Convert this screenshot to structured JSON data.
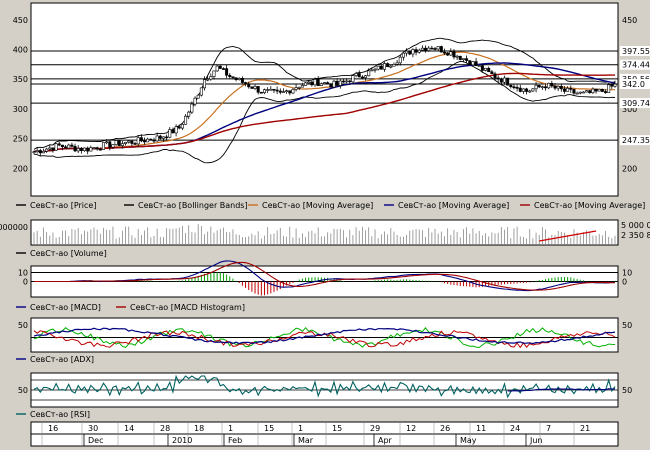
{
  "chart_data": [
    {
      "type": "candlestick",
      "panel": "price",
      "ylim": [
        160,
        470
      ],
      "yticks": [
        200,
        250,
        300,
        350,
        400,
        450
      ],
      "hlines": [
        {
          "value": 397.55,
          "label": "397.55"
        },
        {
          "value": 374.44,
          "label": "374.44"
        },
        {
          "value": 350.56,
          "label": "350.56"
        },
        {
          "value": 342.0,
          "label": "342.0"
        },
        {
          "value": 309.74,
          "label": "309.74"
        },
        {
          "value": 247.35,
          "label": "247.35"
        }
      ],
      "legend": [
        {
          "label": "СевСт-ао [Price]",
          "color": "#000000"
        },
        {
          "label": "СевСт-ао [Bollinger Bands]",
          "color": "#000000"
        },
        {
          "label": "СевСт-ао [Moving Average]",
          "color": "#c87020"
        },
        {
          "label": "СевСт-ао [Moving Average]",
          "color": "#000080"
        },
        {
          "label": "СевСт-ао [Moving Average]",
          "color": "#a00000"
        }
      ],
      "price_anchors": [
        [
          0,
          228
        ],
        [
          8,
          238
        ],
        [
          16,
          232
        ],
        [
          24,
          240
        ],
        [
          32,
          245
        ],
        [
          40,
          252
        ],
        [
          46,
          268
        ],
        [
          50,
          305
        ],
        [
          54,
          350
        ],
        [
          58,
          370
        ],
        [
          62,
          355
        ],
        [
          66,
          345
        ],
        [
          72,
          330
        ],
        [
          78,
          325
        ],
        [
          84,
          340
        ],
        [
          90,
          345
        ],
        [
          96,
          340
        ],
        [
          102,
          355
        ],
        [
          108,
          365
        ],
        [
          114,
          380
        ],
        [
          120,
          400
        ],
        [
          126,
          405
        ],
        [
          132,
          395
        ],
        [
          138,
          380
        ],
        [
          144,
          360
        ],
        [
          150,
          345
        ],
        [
          156,
          330
        ],
        [
          162,
          340
        ],
        [
          168,
          330
        ],
        [
          174,
          325
        ],
        [
          180,
          330
        ],
        [
          184,
          340
        ]
      ],
      "series_colors": {
        "ma_fast": "#c87020",
        "ma_mid": "#000080",
        "ma_slow": "#a00000",
        "bands": "#000000"
      }
    },
    {
      "type": "bar",
      "panel": "volume",
      "ytick_left": "000000",
      "ytick_right_top": "5 000 0",
      "ytick_right_bottom": "2 350 8",
      "legend": [
        {
          "label": "СевСт-ао [Volume]",
          "color": "#000000"
        }
      ]
    },
    {
      "type": "line",
      "panel": "macd",
      "ylim": [
        -15,
        15
      ],
      "yticks": [
        10,
        0
      ],
      "legend": [
        {
          "label": "СевСт-ао [MACD]",
          "color": "#000080"
        },
        {
          "label": "СевСт-ао [MACD Histogram]",
          "color": "#a00000"
        }
      ]
    },
    {
      "type": "line",
      "panel": "adx",
      "ylim": [
        0,
        60
      ],
      "yticks": [
        50
      ],
      "legend": [
        {
          "label": "СевСт-ао [ADX]",
          "color": "#000080"
        }
      ]
    },
    {
      "type": "line",
      "panel": "rsi",
      "ylim": [
        20,
        80
      ],
      "yticks": [
        50
      ],
      "legend": [
        {
          "label": "СевСт-ао [RSI]",
          "color": "#006060"
        }
      ]
    }
  ],
  "xaxis": {
    "day_ticks": [
      "16",
      "30",
      "14",
      "28",
      "18",
      "1",
      "15",
      "1",
      "15",
      "29",
      "12",
      "26",
      "11",
      "24",
      "7",
      "21"
    ],
    "month_ticks": [
      "Dec",
      "2010",
      "Feb",
      "Mar",
      "Apr",
      "May",
      "Jun"
    ]
  }
}
